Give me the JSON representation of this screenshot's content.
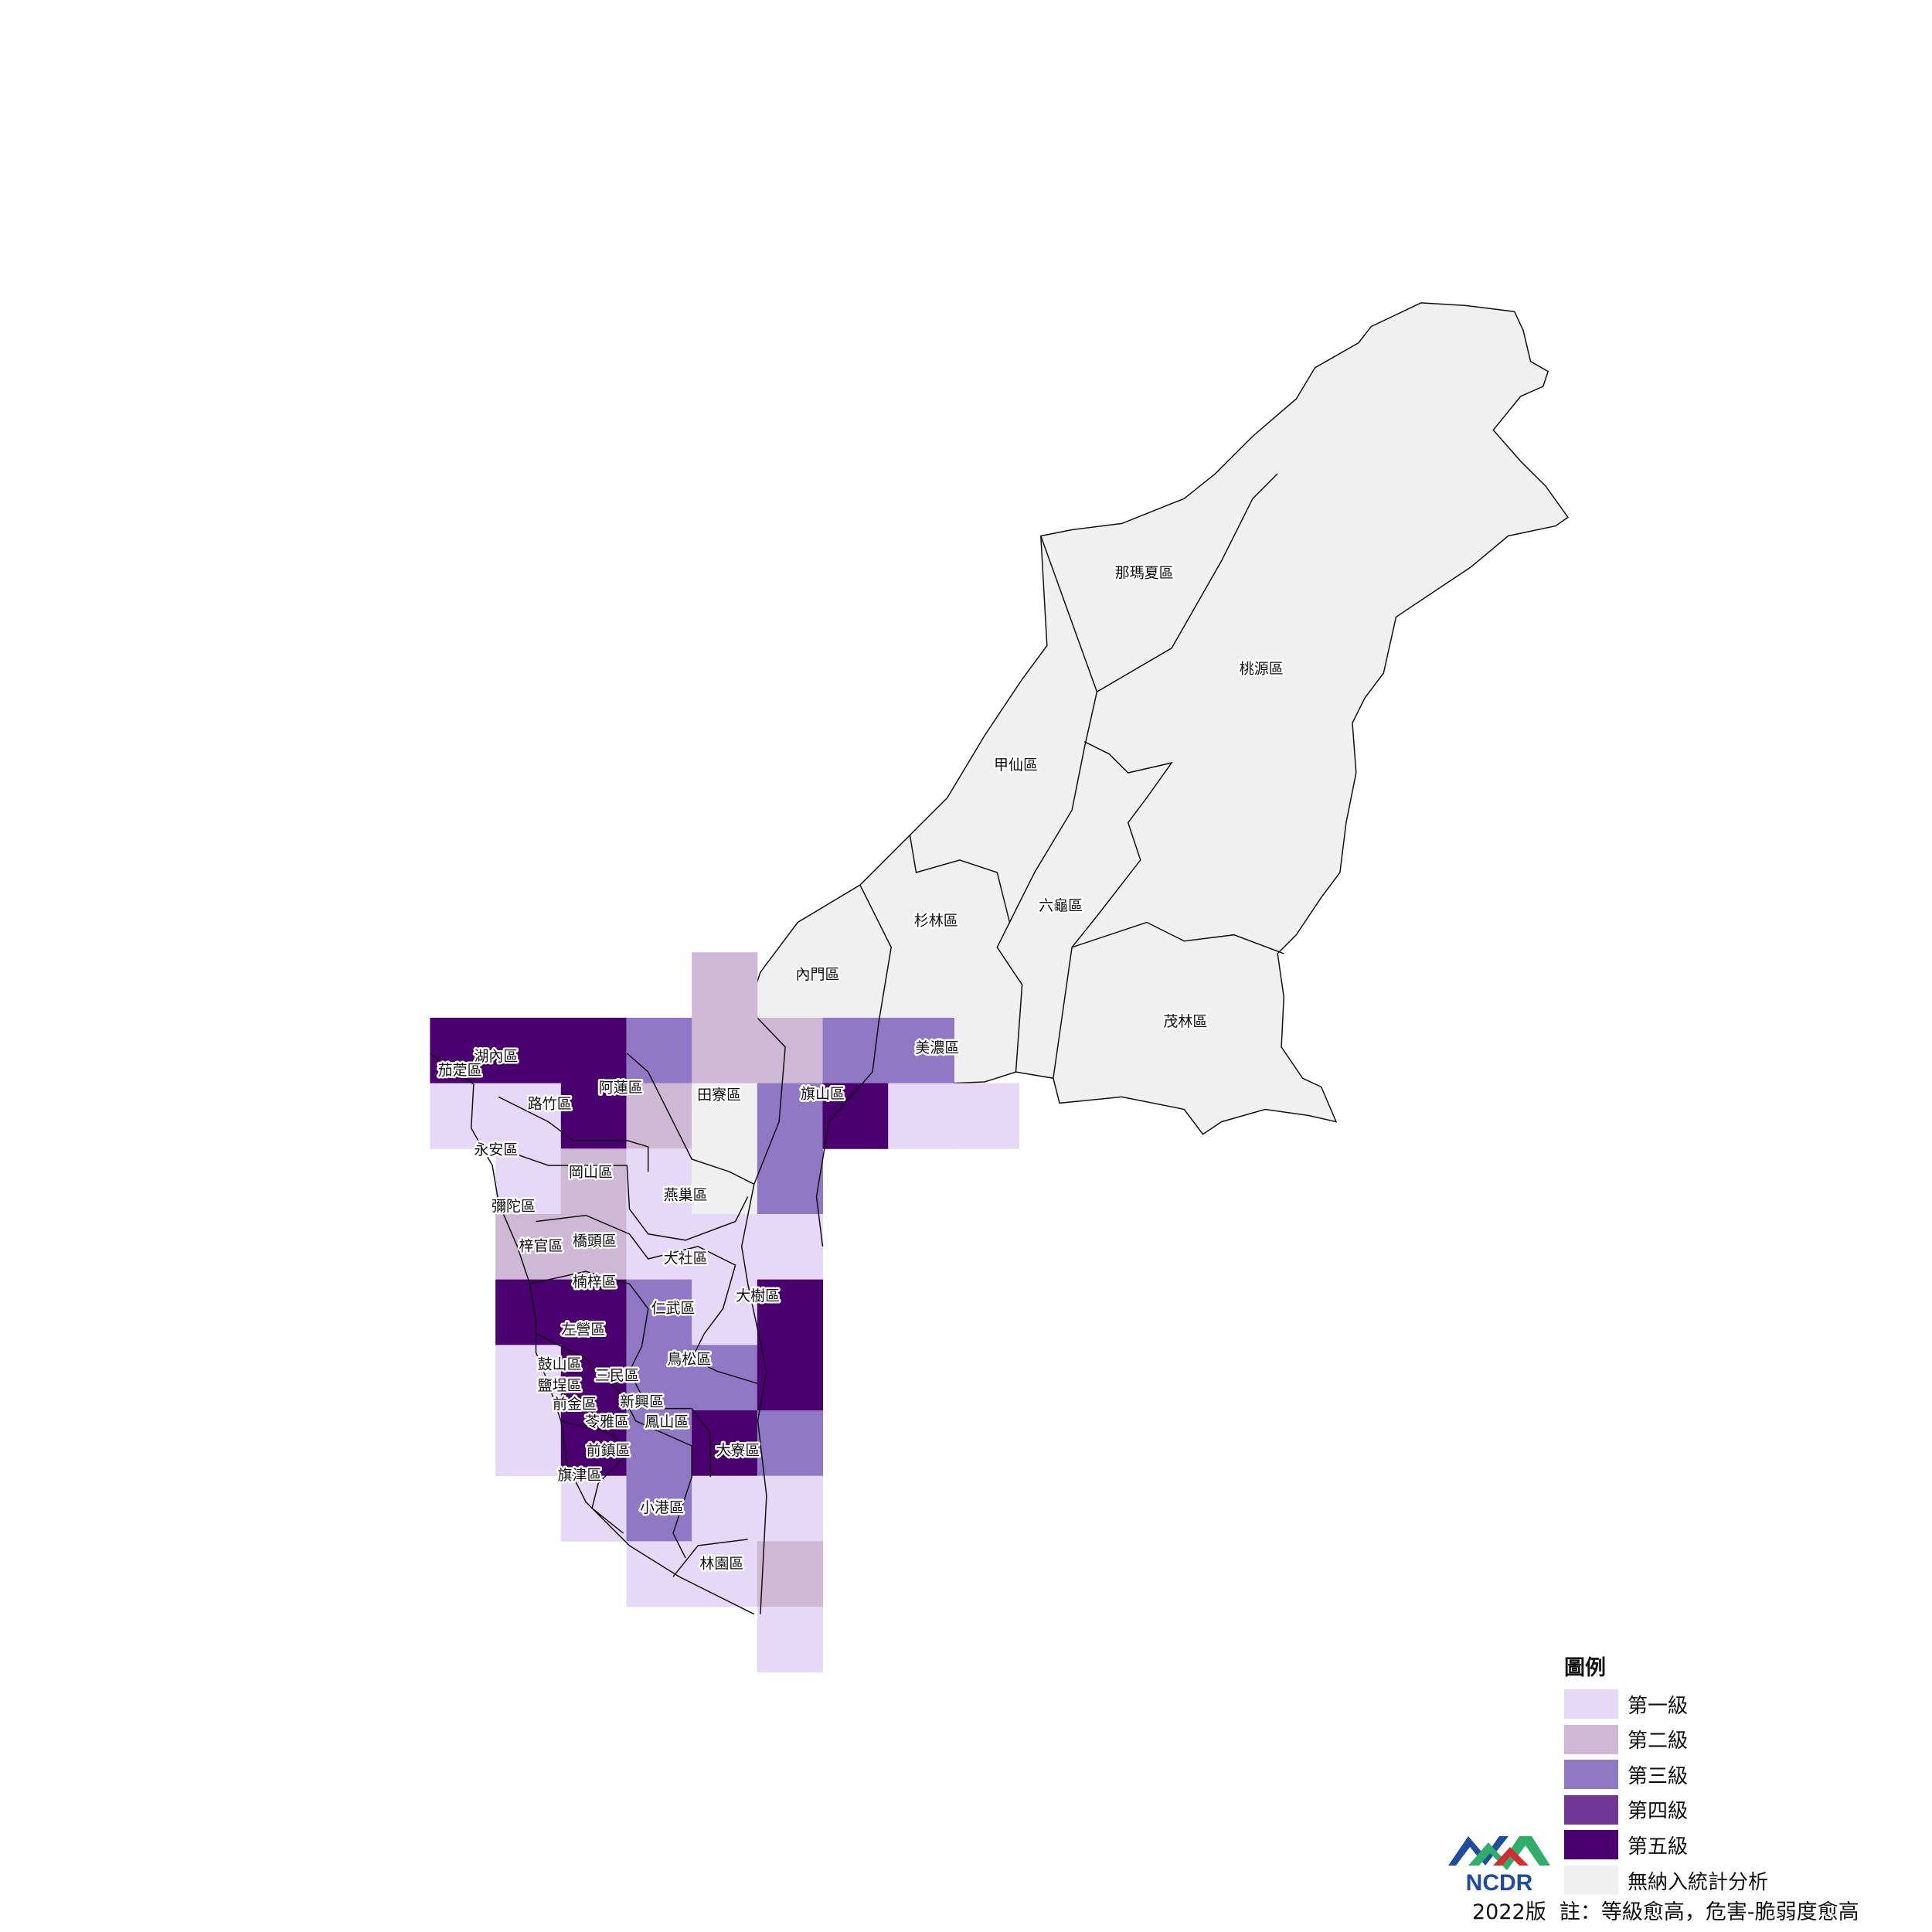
{
  "legend": {
    "title": "圖例",
    "items": [
      {
        "label": "第一級",
        "color": "#e6d9f8"
      },
      {
        "label": "第二級",
        "color": "#cfb8d6"
      },
      {
        "label": "第三級",
        "color": "#8f79c4"
      },
      {
        "label": "第四級",
        "color": "#713797"
      },
      {
        "label": "第五級",
        "color": "#4a006e"
      },
      {
        "label": "無納入統計分析",
        "color": "#f0f0f0"
      }
    ]
  },
  "footer": {
    "version": "2022版",
    "note": "註：等級愈高，危害-脆弱度愈高"
  },
  "logo": {
    "text": "NCDR"
  },
  "map": {
    "grid_levels": [
      [
        null,
        null,
        null,
        null,
        2,
        null,
        null,
        null,
        null
      ],
      [
        5,
        5,
        5,
        3,
        2,
        2,
        3,
        3,
        null
      ],
      [
        1,
        1,
        5,
        2,
        0,
        3,
        5,
        1,
        1
      ],
      [
        null,
        1,
        2,
        1,
        0,
        3,
        null,
        null,
        null
      ],
      [
        null,
        2,
        2,
        1,
        1,
        1,
        null,
        null,
        null
      ],
      [
        null,
        5,
        5,
        3,
        1,
        5,
        null,
        null,
        null
      ],
      [
        null,
        1,
        5,
        3,
        3,
        5,
        null,
        null,
        null
      ],
      [
        null,
        1,
        5,
        3,
        5,
        3,
        null,
        null,
        null
      ],
      [
        null,
        null,
        1,
        3,
        1,
        1,
        null,
        null,
        null
      ],
      [
        null,
        null,
        null,
        1,
        1,
        2,
        null,
        null,
        null
      ],
      [
        null,
        null,
        null,
        null,
        null,
        1,
        null,
        null,
        null
      ]
    ],
    "districts": [
      "那瑪夏區",
      "桃源區",
      "甲仙區",
      "六龜區",
      "杉林區",
      "內門區",
      "茂林區",
      "美濃區",
      "湖內區",
      "茄萣區",
      "阿蓮區",
      "路竹區",
      "田寮區",
      "旗山區",
      "永安區",
      "岡山區",
      "燕巢區",
      "彌陀區",
      "梓官區",
      "橋頭區",
      "大社區",
      "楠梓區",
      "大樹區",
      "仁武區",
      "左營區",
      "鳥松區",
      "鼓山區",
      "三民區",
      "鹽埕區",
      "新興區",
      "前金區",
      "苓雅區",
      "鳳山區",
      "大寮區",
      "前鎮區",
      "旗津區",
      "小港區",
      "林園區"
    ]
  }
}
